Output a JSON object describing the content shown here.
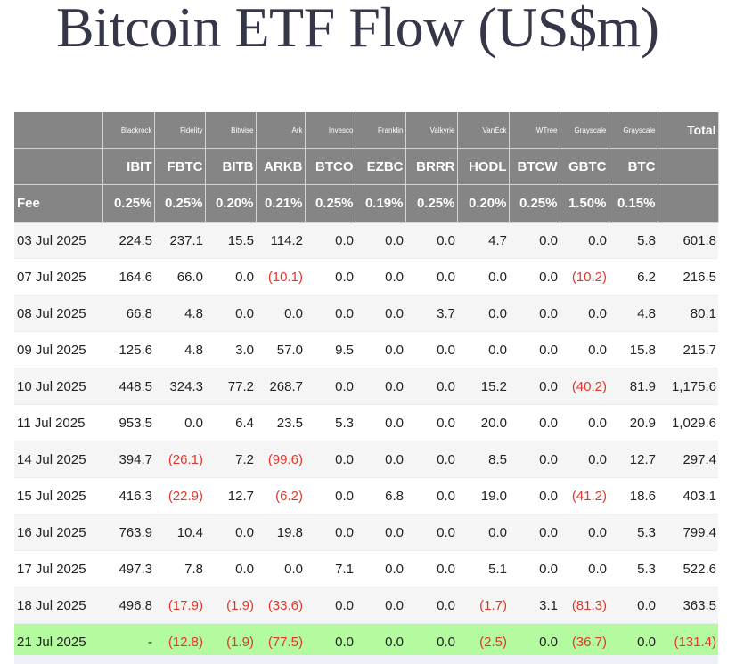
{
  "title": "Bitcoin ETF Flow (US$m)",
  "issuers": [
    "",
    "Blackrock",
    "Fidelity",
    "Bitwise",
    "Ark",
    "Invesco",
    "Franklin",
    "Valkyrie",
    "VanEck",
    "WTree",
    "Grayscale",
    "Grayscale",
    "Total"
  ],
  "tickers": [
    "",
    "IBIT",
    "FBTC",
    "BITB",
    "ARKB",
    "BTCO",
    "EZBC",
    "BRRR",
    "HODL",
    "BTCW",
    "GBTC",
    "BTC",
    ""
  ],
  "fees": [
    "Fee",
    "0.25%",
    "0.25%",
    "0.20%",
    "0.21%",
    "0.25%",
    "0.19%",
    "0.25%",
    "0.20%",
    "0.25%",
    "1.50%",
    "0.15%",
    ""
  ],
  "rows": [
    [
      "03 Jul 2025",
      "224.5",
      "237.1",
      "15.5",
      "114.2",
      "0.0",
      "0.0",
      "0.0",
      "4.7",
      "0.0",
      "0.0",
      "5.8",
      "601.8"
    ],
    [
      "07 Jul 2025",
      "164.6",
      "66.0",
      "0.0",
      "(10.1)",
      "0.0",
      "0.0",
      "0.0",
      "0.0",
      "0.0",
      "(10.2)",
      "6.2",
      "216.5"
    ],
    [
      "08 Jul 2025",
      "66.8",
      "4.8",
      "0.0",
      "0.0",
      "0.0",
      "0.0",
      "3.7",
      "0.0",
      "0.0",
      "0.0",
      "4.8",
      "80.1"
    ],
    [
      "09 Jul 2025",
      "125.6",
      "4.8",
      "3.0",
      "57.0",
      "9.5",
      "0.0",
      "0.0",
      "0.0",
      "0.0",
      "0.0",
      "15.8",
      "215.7"
    ],
    [
      "10 Jul 2025",
      "448.5",
      "324.3",
      "77.2",
      "268.7",
      "0.0",
      "0.0",
      "0.0",
      "15.2",
      "0.0",
      "(40.2)",
      "81.9",
      "1,175.6"
    ],
    [
      "11 Jul 2025",
      "953.5",
      "0.0",
      "6.4",
      "23.5",
      "5.3",
      "0.0",
      "0.0",
      "20.0",
      "0.0",
      "0.0",
      "20.9",
      "1,029.6"
    ],
    [
      "14 Jul 2025",
      "394.7",
      "(26.1)",
      "7.2",
      "(99.6)",
      "0.0",
      "0.0",
      "0.0",
      "8.5",
      "0.0",
      "0.0",
      "12.7",
      "297.4"
    ],
    [
      "15 Jul 2025",
      "416.3",
      "(22.9)",
      "12.7",
      "(6.2)",
      "0.0",
      "6.8",
      "0.0",
      "19.0",
      "0.0",
      "(41.2)",
      "18.6",
      "403.1"
    ],
    [
      "16 Jul 2025",
      "763.9",
      "10.4",
      "0.0",
      "19.8",
      "0.0",
      "0.0",
      "0.0",
      "0.0",
      "0.0",
      "0.0",
      "5.3",
      "799.4"
    ],
    [
      "17 Jul 2025",
      "497.3",
      "7.8",
      "0.0",
      "0.0",
      "7.1",
      "0.0",
      "0.0",
      "5.1",
      "0.0",
      "0.0",
      "5.3",
      "522.6"
    ],
    [
      "18 Jul 2025",
      "496.8",
      "(17.9)",
      "(1.9)",
      "(33.6)",
      "0.0",
      "0.0",
      "0.0",
      "(1.7)",
      "3.1",
      "(81.3)",
      "0.0",
      "363.5"
    ],
    [
      "21 Jul 2025",
      "-",
      "(12.8)",
      "(1.9)",
      "(77.5)",
      "0.0",
      "0.0",
      "0.0",
      "(2.5)",
      "0.0",
      "(36.7)",
      "0.0",
      "(131.4)"
    ]
  ],
  "colors": {
    "header_bg": "#858585",
    "header_text": "#ffffff",
    "negative": "#e1382b",
    "latest_row_bg": "#b4fba0",
    "title": "#353748"
  }
}
